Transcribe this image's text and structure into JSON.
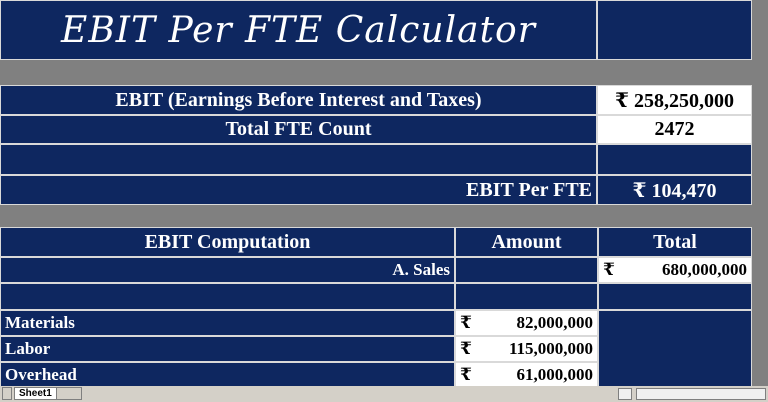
{
  "title": "EBIT Per FTE Calculator",
  "summary": {
    "ebit_label": "EBIT (Earnings Before Interest and Taxes)",
    "ebit_value": "₹ 258,250,000",
    "fte_label": "Total FTE Count",
    "fte_value": "2472",
    "per_fte_label": "EBIT Per FTE",
    "per_fte_value": "₹ 104,470"
  },
  "computation": {
    "col_item": "EBIT Computation",
    "col_amount": "Amount",
    "col_total": "Total",
    "sales_label": "A. Sales",
    "sales_currency": "₹",
    "sales_total": "680,000,000",
    "rows": [
      {
        "label": "Materials",
        "currency": "₹",
        "amount": "82,000,000"
      },
      {
        "label": "Labor",
        "currency": "₹",
        "amount": "115,000,000"
      },
      {
        "label": "Overhead",
        "currency": "₹",
        "amount": "61,000,000"
      }
    ]
  },
  "sheet_tabs": {
    "active": "Sheet1"
  },
  "colors": {
    "navy": "#0e2760",
    "gap": "#808080"
  }
}
